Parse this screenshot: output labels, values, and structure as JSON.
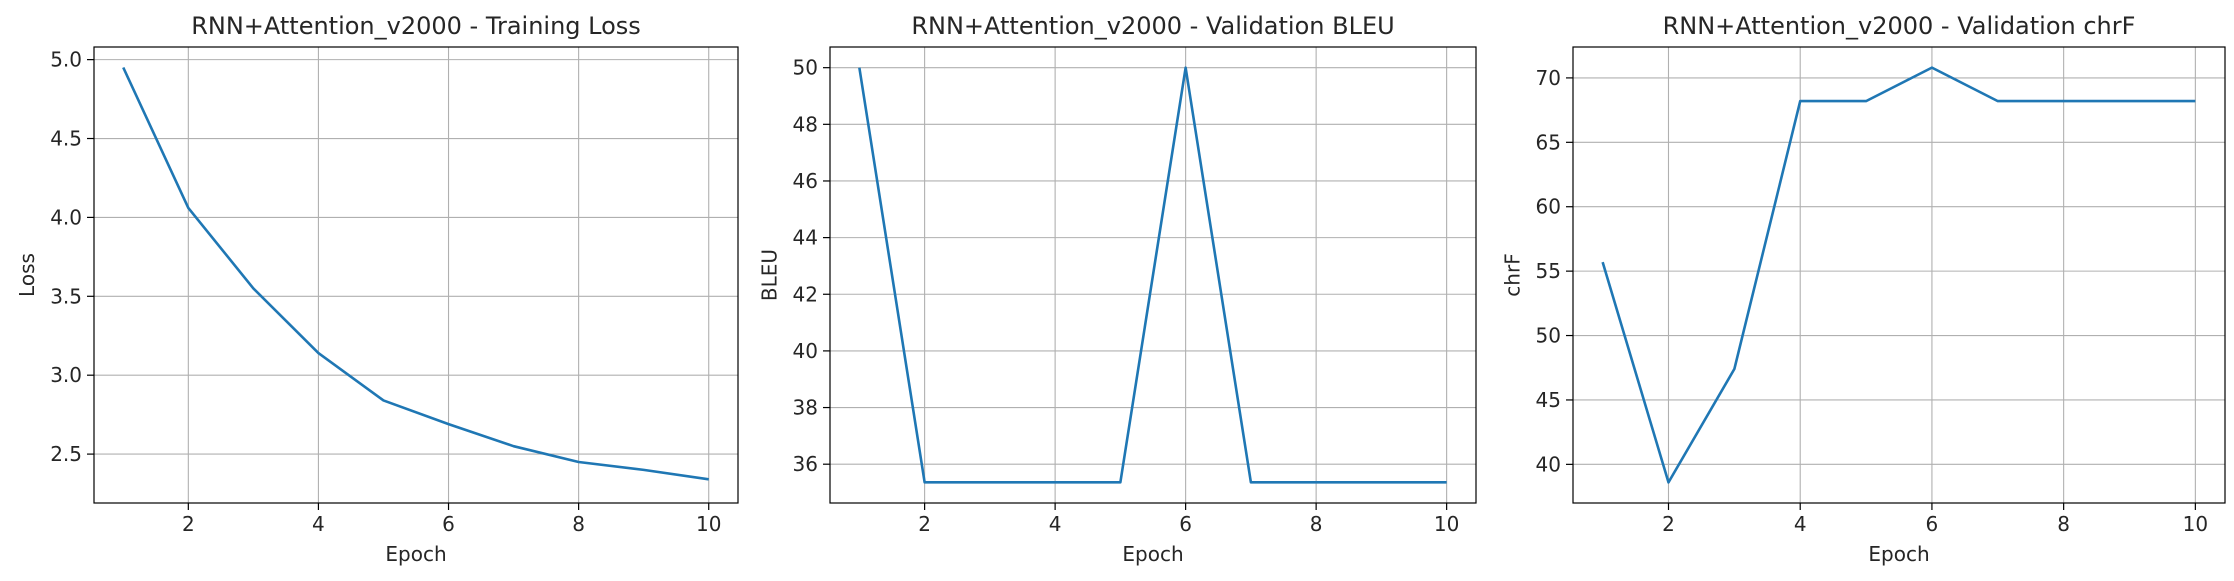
{
  "chart_data": [
    {
      "type": "line",
      "title": "RNN+Attention_v2000 - Training Loss",
      "xlabel": "Epoch",
      "ylabel": "Loss",
      "x": [
        1,
        2,
        3,
        4,
        5,
        6,
        7,
        8,
        9,
        10
      ],
      "series": [
        {
          "values": [
            4.95,
            4.06,
            3.55,
            3.14,
            2.84,
            2.69,
            2.55,
            2.45,
            2.4,
            2.34
          ]
        }
      ],
      "xlim": [
        0.55,
        10.45
      ],
      "ylim": [
        2.19,
        5.08
      ],
      "xticks": [
        2,
        4,
        6,
        8,
        10
      ],
      "yticks": [
        2.5,
        3.0,
        3.5,
        4.0,
        4.5,
        5.0
      ],
      "ytick_labels": [
        "2.5",
        "3.0",
        "3.5",
        "4.0",
        "4.5",
        "5.0"
      ],
      "grid": true,
      "line_color": "#1f77b4"
    },
    {
      "type": "line",
      "title": "RNN+Attention_v2000 - Validation BLEU",
      "xlabel": "Epoch",
      "ylabel": "BLEU",
      "x": [
        1,
        2,
        3,
        4,
        5,
        6,
        7,
        8,
        9,
        10
      ],
      "series": [
        {
          "values": [
            50.0,
            35.36,
            35.36,
            35.36,
            35.36,
            50.0,
            35.36,
            35.36,
            35.36,
            35.36
          ]
        }
      ],
      "xlim": [
        0.55,
        10.45
      ],
      "ylim": [
        34.63,
        50.73
      ],
      "xticks": [
        2,
        4,
        6,
        8,
        10
      ],
      "yticks": [
        36,
        38,
        40,
        42,
        44,
        46,
        48,
        50
      ],
      "ytick_labels": [
        "36",
        "38",
        "40",
        "42",
        "44",
        "46",
        "48",
        "50"
      ],
      "grid": true,
      "line_color": "#1f77b4"
    },
    {
      "type": "line",
      "title": "RNN+Attention_v2000 - Validation chrF",
      "xlabel": "Epoch",
      "ylabel": "chrF",
      "x": [
        1,
        2,
        3,
        4,
        5,
        6,
        7,
        8,
        9,
        10
      ],
      "series": [
        {
          "values": [
            55.7,
            38.6,
            47.4,
            68.2,
            68.2,
            70.8,
            68.2,
            68.2,
            68.2,
            68.2
          ]
        }
      ],
      "xlim": [
        0.55,
        10.45
      ],
      "ylim": [
        37.0,
        72.4
      ],
      "xticks": [
        2,
        4,
        6,
        8,
        10
      ],
      "yticks": [
        40,
        45,
        50,
        55,
        60,
        65,
        70
      ],
      "ytick_labels": [
        "40",
        "45",
        "50",
        "55",
        "60",
        "65",
        "70"
      ],
      "grid": true,
      "line_color": "#1f77b4"
    }
  ]
}
